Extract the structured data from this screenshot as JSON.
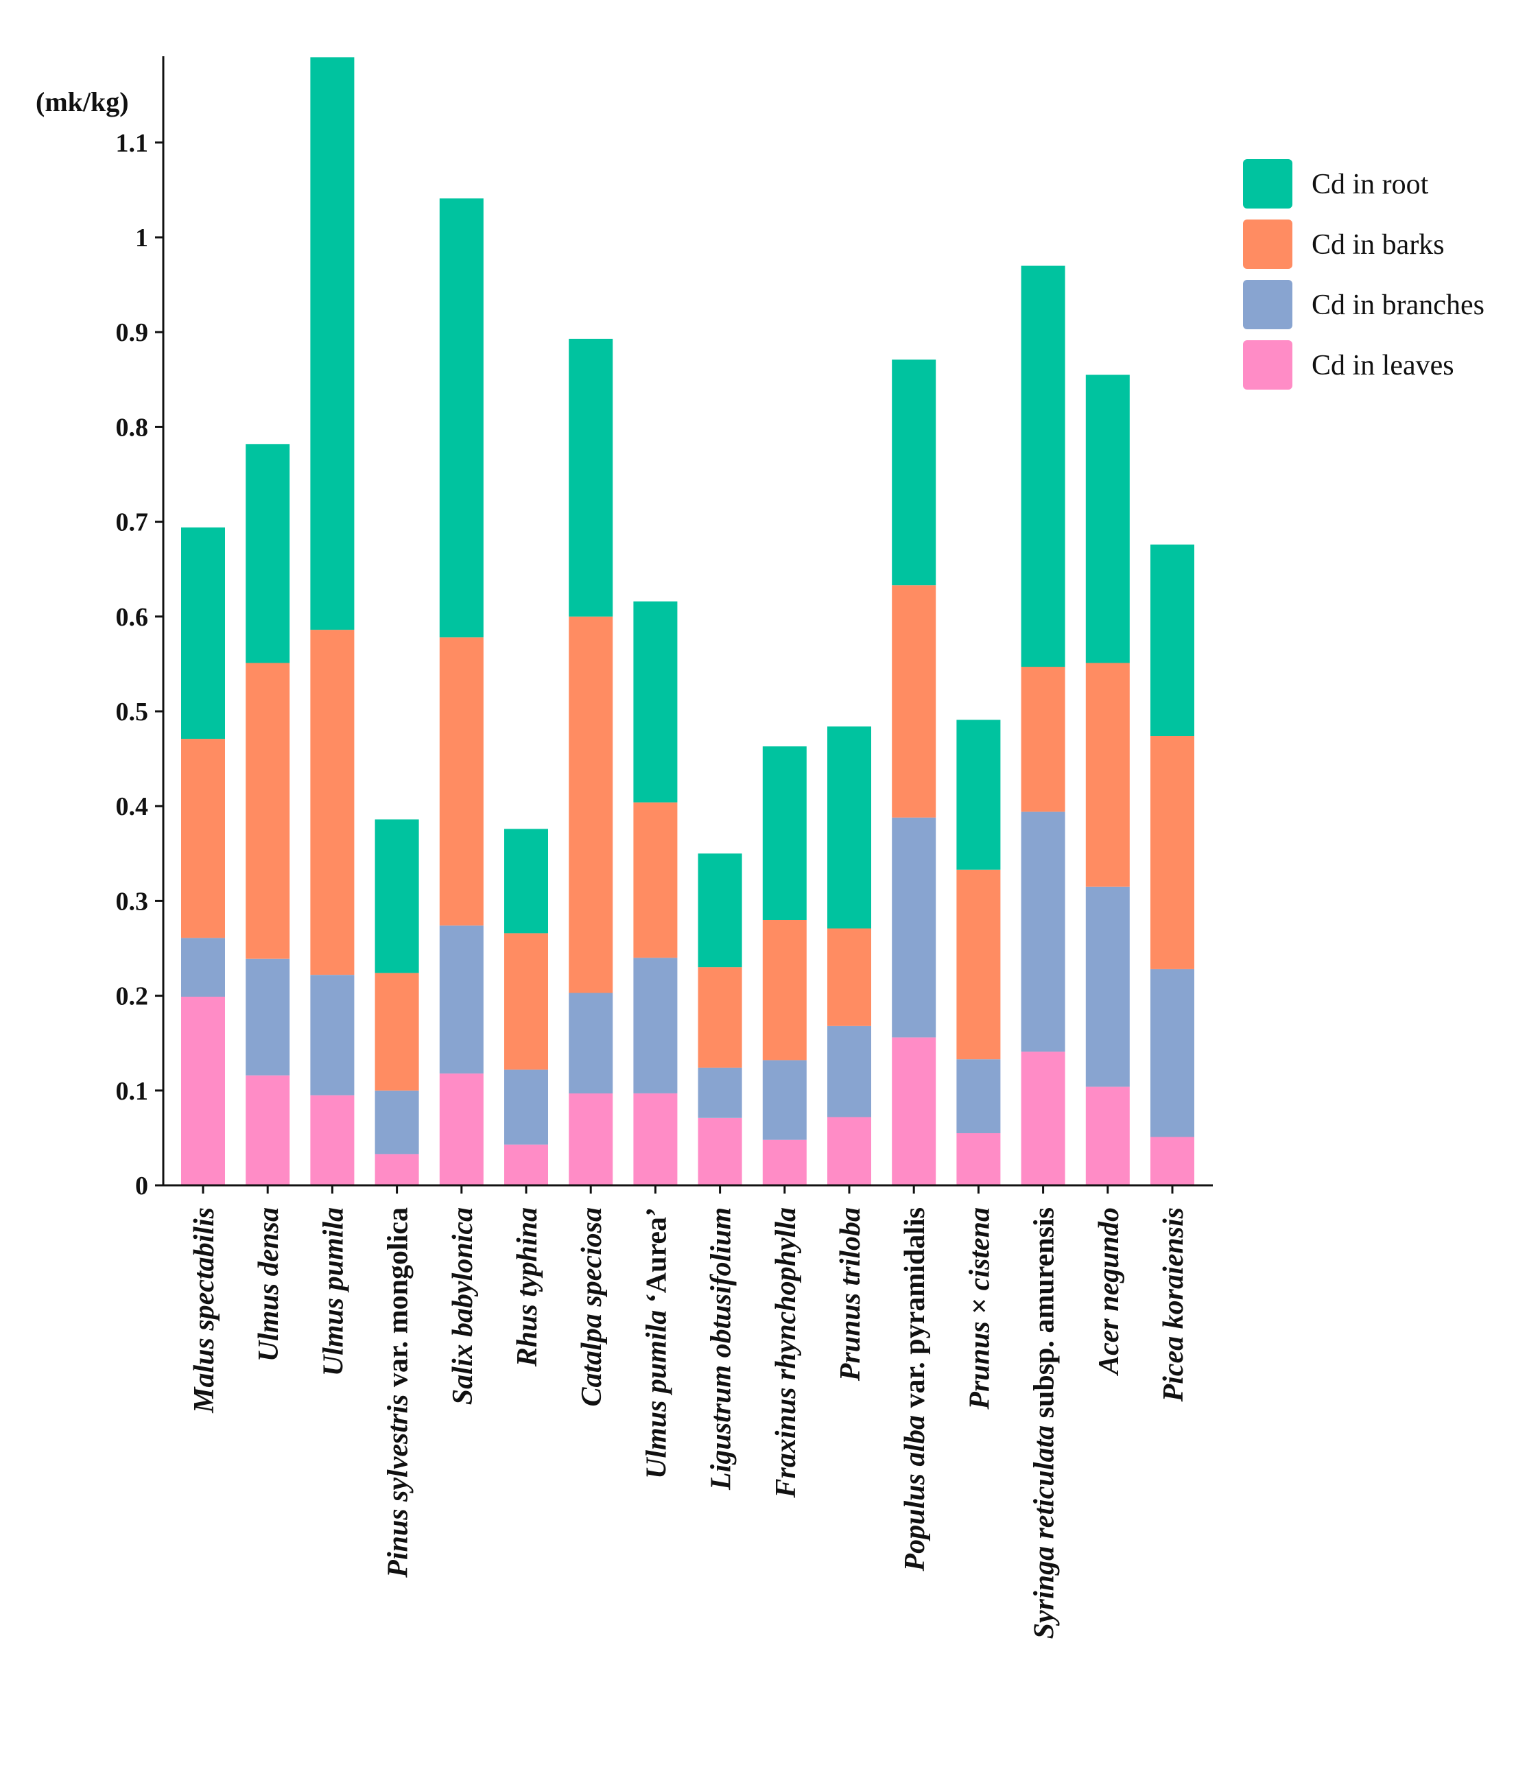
{
  "chart_data": {
    "type": "bar",
    "stacked": true,
    "title": "",
    "xlabel": "",
    "ylabel": "(mk/kg)",
    "ylim": [
      0,
      1.19
    ],
    "yticks": [
      "0",
      "0.1",
      "0.2",
      "0.3",
      "0.4",
      "0.5",
      "0.6",
      "0.7",
      "0.8",
      "0.9",
      "1",
      "1.1"
    ],
    "grid": false,
    "legend_position": "top-right",
    "categories": [
      [
        {
          "t": "Malus spectabilis",
          "i": true
        }
      ],
      [
        {
          "t": "Ulmus densa",
          "i": true
        }
      ],
      [
        {
          "t": "Ulmus pumila",
          "i": true
        }
      ],
      [
        {
          "t": "Pinus sylvestris",
          "i": true
        },
        {
          "t": " var. mongolica",
          "i": false
        }
      ],
      [
        {
          "t": "Salix babylonica",
          "i": true
        }
      ],
      [
        {
          "t": "Rhus typhina",
          "i": true
        }
      ],
      [
        {
          "t": "Catalpa speciosa",
          "i": true
        }
      ],
      [
        {
          "t": "Ulmus pumila",
          "i": true
        },
        {
          "t": " ‘Aurea’",
          "i": false
        }
      ],
      [
        {
          "t": "Ligustrum obtusifolium",
          "i": true
        }
      ],
      [
        {
          "t": "Fraxinus rhynchophylla",
          "i": true
        }
      ],
      [
        {
          "t": "Prunus triloba",
          "i": true
        }
      ],
      [
        {
          "t": "Populus alba",
          "i": true
        },
        {
          "t": " var. pyramidalis",
          "i": false
        }
      ],
      [
        {
          "t": "Prunus",
          "i": true
        },
        {
          "t": " × ",
          "i": false
        },
        {
          "t": "cistena",
          "i": true
        }
      ],
      [
        {
          "t": "Syringa reticulata",
          "i": true
        },
        {
          "t": " subsp. amurensis",
          "i": false
        }
      ],
      [
        {
          "t": "Acer negundo",
          "i": true
        }
      ],
      [
        {
          "t": "Picea koraiensis",
          "i": true
        }
      ]
    ],
    "series": [
      {
        "name": "Cd in leaves",
        "color": "#ff8cc6",
        "values": [
          0.199,
          0.116,
          0.095,
          0.033,
          0.118,
          0.043,
          0.097,
          0.097,
          0.071,
          0.048,
          0.072,
          0.156,
          0.055,
          0.141,
          0.104,
          0.051
        ]
      },
      {
        "name": "Cd in branches",
        "color": "#88a4d0",
        "values": [
          0.062,
          0.123,
          0.127,
          0.067,
          0.156,
          0.079,
          0.106,
          0.143,
          0.053,
          0.084,
          0.096,
          0.232,
          0.078,
          0.253,
          0.211,
          0.177
        ]
      },
      {
        "name": "Cd in barks",
        "color": "#ff8c62",
        "values": [
          0.21,
          0.312,
          0.364,
          0.124,
          0.304,
          0.144,
          0.397,
          0.164,
          0.106,
          0.148,
          0.103,
          0.245,
          0.2,
          0.153,
          0.236,
          0.246
        ]
      },
      {
        "name": "Cd in root",
        "color": "#00c39f",
        "values": [
          0.223,
          0.231,
          0.604,
          0.162,
          0.463,
          0.11,
          0.293,
          0.212,
          0.12,
          0.183,
          0.213,
          0.238,
          0.158,
          0.423,
          0.304,
          0.202
        ]
      }
    ],
    "legend_order": [
      "Cd in root",
      "Cd in barks",
      "Cd in branches",
      "Cd in leaves"
    ]
  }
}
